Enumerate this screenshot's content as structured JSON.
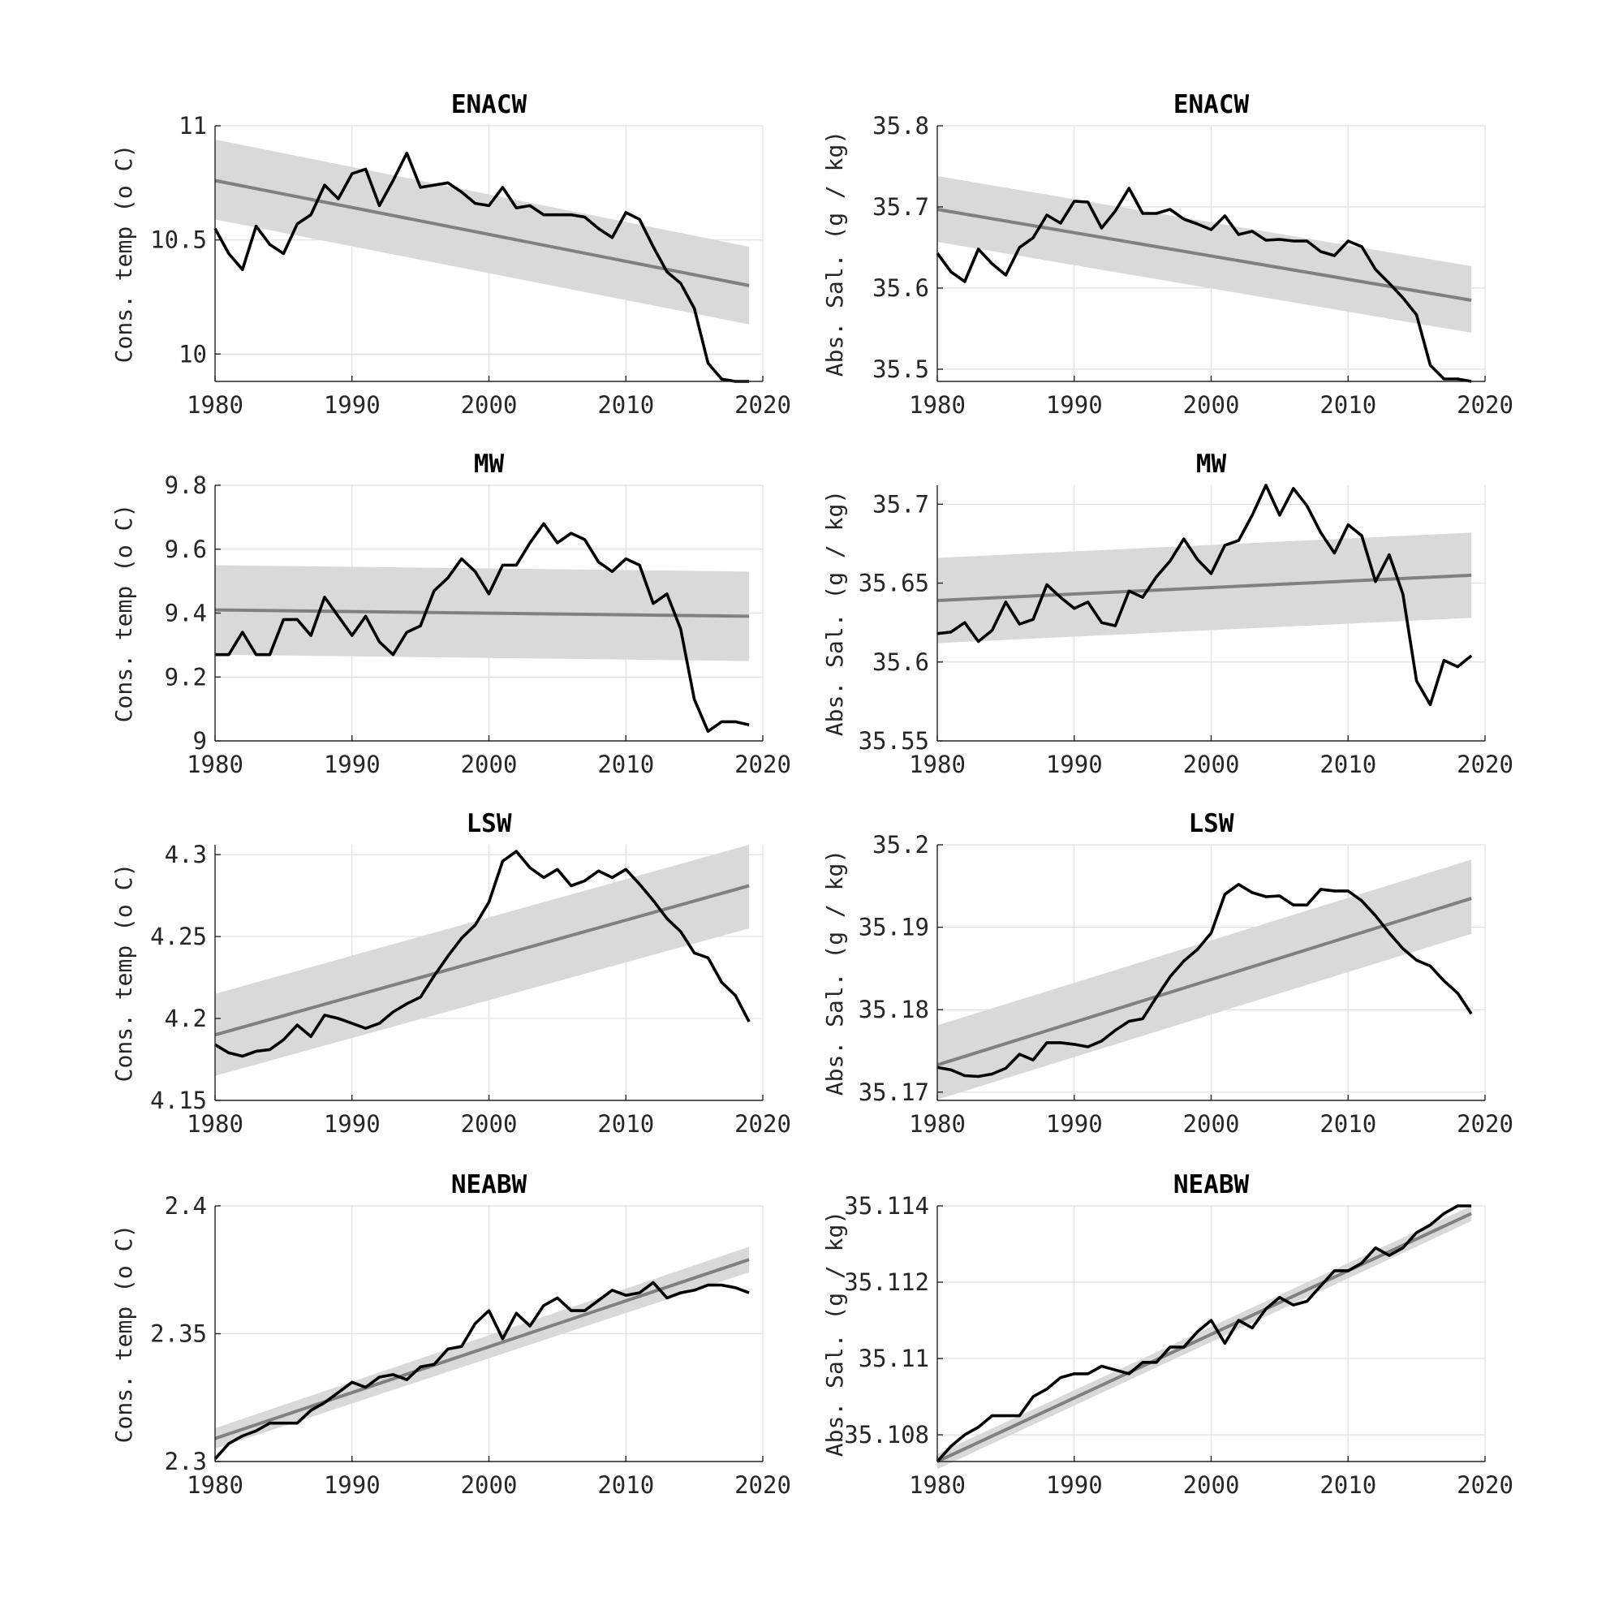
{
  "colors": {
    "observed": "#000000",
    "trend": "#808080",
    "confidence_band": "#d9d9d9",
    "grid": "#e1e1e1"
  },
  "chart_data": [
    {
      "type": "line",
      "title": "ENACW",
      "xlabel": "",
      "ylabel": "Cons. temp (o C)",
      "xlim": [
        1980,
        2020
      ],
      "ylim": [
        9.88,
        11
      ],
      "xticks": [
        "1980",
        "1990",
        "2000",
        "2010",
        "2020"
      ],
      "yticks": [
        "10",
        "10.5",
        "11"
      ],
      "ytick_values": [
        10,
        10.5,
        11
      ],
      "grid": true,
      "x": [
        1980,
        1981,
        1982,
        1983,
        1984,
        1985,
        1986,
        1987,
        1988,
        1989,
        1990,
        1991,
        1992,
        1993,
        1994,
        1995,
        1996,
        1997,
        1998,
        1999,
        2000,
        2001,
        2002,
        2003,
        2004,
        2005,
        2006,
        2007,
        2008,
        2009,
        2010,
        2011,
        2012,
        2013,
        2014,
        2015,
        2016,
        2017,
        2018,
        2019
      ],
      "series": [
        {
          "values": [
            10.55,
            10.44,
            10.37,
            10.56,
            10.48,
            10.44,
            10.57,
            10.61,
            10.74,
            10.68,
            10.79,
            10.81,
            10.65,
            10.76,
            10.88,
            10.73,
            10.74,
            10.75,
            10.71,
            10.66,
            10.65,
            10.73,
            10.64,
            10.65,
            10.61,
            10.61,
            10.61,
            10.6,
            10.55,
            10.51,
            10.62,
            10.59,
            10.47,
            10.36,
            10.31,
            10.2,
            9.96,
            9.89,
            9.88,
            9.88
          ]
        }
      ],
      "trend": {
        "start": 10.76,
        "end": 10.3
      },
      "confidence_band": {
        "upper_start": 10.94,
        "upper_end": 10.47,
        "lower_start": 10.59,
        "lower_end": 10.13
      }
    },
    {
      "type": "line",
      "title": "ENACW",
      "xlabel": "",
      "ylabel": "Abs. Sal. (g / kg)",
      "xlim": [
        1980,
        2020
      ],
      "ylim": [
        35.485,
        35.8
      ],
      "xticks": [
        "1980",
        "1990",
        "2000",
        "2010",
        "2020"
      ],
      "yticks": [
        "35.5",
        "35.6",
        "35.7",
        "35.8"
      ],
      "ytick_values": [
        35.5,
        35.6,
        35.7,
        35.8
      ],
      "grid": true,
      "x": [
        1980,
        1981,
        1982,
        1983,
        1984,
        1985,
        1986,
        1987,
        1988,
        1989,
        1990,
        1991,
        1992,
        1993,
        1994,
        1995,
        1996,
        1997,
        1998,
        1999,
        2000,
        2001,
        2002,
        2003,
        2004,
        2005,
        2006,
        2007,
        2008,
        2009,
        2010,
        2011,
        2012,
        2013,
        2014,
        2015,
        2016,
        2017,
        2018,
        2019
      ],
      "series": [
        {
          "values": [
            35.643,
            35.62,
            35.608,
            35.648,
            35.63,
            35.616,
            35.65,
            35.662,
            35.69,
            35.68,
            35.707,
            35.706,
            35.674,
            35.695,
            35.723,
            35.692,
            35.692,
            35.697,
            35.685,
            35.679,
            35.672,
            35.689,
            35.666,
            35.67,
            35.659,
            35.66,
            35.658,
            35.658,
            35.645,
            35.64,
            35.658,
            35.651,
            35.623,
            35.606,
            35.588,
            35.567,
            35.505,
            35.488,
            35.488,
            35.485
          ]
        }
      ],
      "trend": {
        "start": 35.697,
        "end": 35.585
      },
      "confidence_band": {
        "upper_start": 35.738,
        "upper_end": 35.627,
        "lower_start": 35.657,
        "lower_end": 35.545
      }
    },
    {
      "type": "line",
      "title": "MW",
      "xlabel": "",
      "ylabel": "Cons. temp (o C)",
      "xlim": [
        1980,
        2020
      ],
      "ylim": [
        9,
        9.8
      ],
      "xticks": [
        "1980",
        "1990",
        "2000",
        "2010",
        "2020"
      ],
      "yticks": [
        "9",
        "9.2",
        "9.4",
        "9.6",
        "9.8"
      ],
      "ytick_values": [
        9,
        9.2,
        9.4,
        9.6,
        9.8
      ],
      "grid": true,
      "x": [
        1980,
        1981,
        1982,
        1983,
        1984,
        1985,
        1986,
        1987,
        1988,
        1989,
        1990,
        1991,
        1992,
        1993,
        1994,
        1995,
        1996,
        1997,
        1998,
        1999,
        2000,
        2001,
        2002,
        2003,
        2004,
        2005,
        2006,
        2007,
        2008,
        2009,
        2010,
        2011,
        2012,
        2013,
        2014,
        2015,
        2016,
        2017,
        2018,
        2019
      ],
      "series": [
        {
          "values": [
            9.27,
            9.27,
            9.34,
            9.27,
            9.27,
            9.38,
            9.38,
            9.33,
            9.45,
            9.39,
            9.33,
            9.39,
            9.31,
            9.27,
            9.34,
            9.36,
            9.47,
            9.51,
            9.57,
            9.53,
            9.46,
            9.55,
            9.55,
            9.62,
            9.68,
            9.62,
            9.65,
            9.63,
            9.56,
            9.53,
            9.57,
            9.55,
            9.43,
            9.46,
            9.35,
            9.13,
            9.03,
            9.06,
            9.06,
            9.05
          ]
        }
      ],
      "trend": {
        "start": 9.41,
        "end": 9.39
      },
      "confidence_band": {
        "upper_start": 9.55,
        "upper_end": 9.53,
        "lower_start": 9.27,
        "lower_end": 9.25
      }
    },
    {
      "type": "line",
      "title": "MW",
      "xlabel": "",
      "ylabel": "Abs. Sal. (g / kg)",
      "xlim": [
        1980,
        2020
      ],
      "ylim": [
        35.55,
        35.712
      ],
      "xticks": [
        "1980",
        "1990",
        "2000",
        "2010",
        "2020"
      ],
      "yticks": [
        "35.55",
        "35.6",
        "35.65",
        "35.7"
      ],
      "ytick_values": [
        35.55,
        35.6,
        35.65,
        35.7
      ],
      "grid": true,
      "x": [
        1980,
        1981,
        1982,
        1983,
        1984,
        1985,
        1986,
        1987,
        1988,
        1989,
        1990,
        1991,
        1992,
        1993,
        1994,
        1995,
        1996,
        1997,
        1998,
        1999,
        2000,
        2001,
        2002,
        2003,
        2004,
        2005,
        2006,
        2007,
        2008,
        2009,
        2010,
        2011,
        2012,
        2013,
        2014,
        2015,
        2016,
        2017,
        2018,
        2019
      ],
      "series": [
        {
          "values": [
            35.618,
            35.619,
            35.625,
            35.613,
            35.62,
            35.638,
            35.624,
            35.627,
            35.649,
            35.641,
            35.634,
            35.638,
            35.625,
            35.623,
            35.645,
            35.641,
            35.654,
            35.664,
            35.678,
            35.665,
            35.656,
            35.674,
            35.677,
            35.693,
            35.712,
            35.693,
            35.71,
            35.699,
            35.682,
            35.669,
            35.687,
            35.68,
            35.651,
            35.668,
            35.643,
            35.588,
            35.573,
            35.601,
            35.597,
            35.604
          ]
        }
      ],
      "trend": {
        "start": 35.639,
        "end": 35.655
      },
      "confidence_band": {
        "upper_start": 35.666,
        "upper_end": 35.682,
        "lower_start": 35.612,
        "lower_end": 35.628
      }
    },
    {
      "type": "line",
      "title": "LSW",
      "xlabel": "",
      "ylabel": "Cons. temp (o C)",
      "xlim": [
        1980,
        2020
      ],
      "ylim": [
        4.15,
        4.306
      ],
      "xticks": [
        "1980",
        "1990",
        "2000",
        "2010",
        "2020"
      ],
      "yticks": [
        "4.15",
        "4.2",
        "4.25",
        "4.3"
      ],
      "ytick_values": [
        4.15,
        4.2,
        4.25,
        4.3
      ],
      "grid": true,
      "x": [
        1980,
        1981,
        1982,
        1983,
        1984,
        1985,
        1986,
        1987,
        1988,
        1989,
        1990,
        1991,
        1992,
        1993,
        1994,
        1995,
        1996,
        1997,
        1998,
        1999,
        2000,
        2001,
        2002,
        2003,
        2004,
        2005,
        2006,
        2007,
        2008,
        2009,
        2010,
        2011,
        2012,
        2013,
        2014,
        2015,
        2016,
        2017,
        2018,
        2019
      ],
      "series": [
        {
          "values": [
            4.184,
            4.179,
            4.177,
            4.18,
            4.181,
            4.187,
            4.196,
            4.189,
            4.202,
            4.2,
            4.197,
            4.194,
            4.197,
            4.204,
            4.209,
            4.213,
            4.226,
            4.238,
            4.249,
            4.257,
            4.271,
            4.296,
            4.302,
            4.292,
            4.286,
            4.291,
            4.281,
            4.284,
            4.29,
            4.286,
            4.291,
            4.282,
            4.272,
            4.261,
            4.253,
            4.24,
            4.237,
            4.222,
            4.214,
            4.198
          ]
        }
      ],
      "trend": {
        "start": 4.19,
        "end": 4.281
      },
      "confidence_band": {
        "upper_start": 4.215,
        "upper_end": 4.306,
        "lower_start": 4.165,
        "lower_end": 4.255
      }
    },
    {
      "type": "line",
      "title": "LSW",
      "xlabel": "",
      "ylabel": "Abs. Sal. (g / kg)",
      "xlim": [
        1980,
        2020
      ],
      "ylim": [
        35.169,
        35.2
      ],
      "xticks": [
        "1980",
        "1990",
        "2000",
        "2010",
        "2020"
      ],
      "yticks": [
        "35.17",
        "35.18",
        "35.19",
        "35.2"
      ],
      "ytick_values": [
        35.17,
        35.18,
        35.19,
        35.2
      ],
      "grid": true,
      "x": [
        1980,
        1981,
        1982,
        1983,
        1984,
        1985,
        1986,
        1987,
        1988,
        1989,
        1990,
        1991,
        1992,
        1993,
        1994,
        1995,
        1996,
        1997,
        1998,
        1999,
        2000,
        2001,
        2002,
        2003,
        2004,
        2005,
        2006,
        2007,
        2008,
        2009,
        2010,
        2011,
        2012,
        2013,
        2014,
        2015,
        2016,
        2017,
        2018,
        2019
      ],
      "series": [
        {
          "values": [
            35.173,
            35.1727,
            35.172,
            35.1719,
            35.1722,
            35.1729,
            35.1746,
            35.1739,
            35.176,
            35.176,
            35.1758,
            35.1755,
            35.1762,
            35.1775,
            35.1786,
            35.1789,
            35.1815,
            35.184,
            35.1859,
            35.1873,
            35.1893,
            35.194,
            35.1952,
            35.1942,
            35.1937,
            35.1938,
            35.1927,
            35.1927,
            35.1946,
            35.1944,
            35.1944,
            35.1932,
            35.1914,
            35.1893,
            35.1874,
            35.186,
            35.1853,
            35.1835,
            35.182,
            35.1795
          ]
        }
      ],
      "trend": {
        "start": 35.1733,
        "end": 35.1935
      },
      "confidence_band": {
        "upper_start": 35.1781,
        "upper_end": 35.1982,
        "lower_start": 35.1691,
        "lower_end": 35.1892
      }
    },
    {
      "type": "line",
      "title": "NEABW",
      "xlabel": "",
      "ylabel": "Cons. temp (o C)",
      "xlim": [
        1980,
        2020
      ],
      "ylim": [
        2.3,
        2.4
      ],
      "xticks": [
        "1980",
        "1990",
        "2000",
        "2010",
        "2020"
      ],
      "yticks": [
        "2.3",
        "2.35",
        "2.4"
      ],
      "ytick_values": [
        2.3,
        2.35,
        2.4
      ],
      "grid": true,
      "x": [
        1980,
        1981,
        1982,
        1983,
        1984,
        1985,
        1986,
        1987,
        1988,
        1989,
        1990,
        1991,
        1992,
        1993,
        1994,
        1995,
        1996,
        1997,
        1998,
        1999,
        2000,
        2001,
        2002,
        2003,
        2004,
        2005,
        2006,
        2007,
        2008,
        2009,
        2010,
        2011,
        2012,
        2013,
        2014,
        2015,
        2016,
        2017,
        2018,
        2019
      ],
      "series": [
        {
          "values": [
            2.301,
            2.307,
            2.31,
            2.312,
            2.315,
            2.315,
            2.315,
            2.32,
            2.323,
            2.327,
            2.331,
            2.329,
            2.333,
            2.334,
            2.332,
            2.337,
            2.338,
            2.344,
            2.345,
            2.354,
            2.359,
            2.348,
            2.358,
            2.353,
            2.361,
            2.364,
            2.359,
            2.359,
            2.363,
            2.367,
            2.365,
            2.366,
            2.37,
            2.364,
            2.366,
            2.367,
            2.369,
            2.369,
            2.368,
            2.366
          ]
        }
      ],
      "trend": {
        "start": 2.309,
        "end": 2.379
      },
      "confidence_band": {
        "upper_start": 2.313,
        "upper_end": 2.384,
        "lower_start": 2.305,
        "lower_end": 2.374
      }
    },
    {
      "type": "line",
      "title": "NEABW",
      "xlabel": "",
      "ylabel": "Abs. Sal. (g / kg)",
      "xlim": [
        1980,
        2020
      ],
      "ylim": [
        35.1073,
        35.114
      ],
      "xticks": [
        "1980",
        "1990",
        "2000",
        "2010",
        "2020"
      ],
      "yticks": [
        "35.108",
        "35.11",
        "35.112",
        "35.114"
      ],
      "ytick_values": [
        35.108,
        35.11,
        35.112,
        35.114
      ],
      "grid": true,
      "x": [
        1980,
        1981,
        1982,
        1983,
        1984,
        1985,
        1986,
        1987,
        1988,
        1989,
        1990,
        1991,
        1992,
        1993,
        1994,
        1995,
        1996,
        1997,
        1998,
        1999,
        2000,
        2001,
        2002,
        2003,
        2004,
        2005,
        2006,
        2007,
        2008,
        2009,
        2010,
        2011,
        2012,
        2013,
        2014,
        2015,
        2016,
        2017,
        2018,
        2019
      ],
      "series": [
        {
          "values": [
            35.1073,
            35.1077,
            35.108,
            35.1082,
            35.1085,
            35.1085,
            35.1085,
            35.109,
            35.1092,
            35.1095,
            35.1096,
            35.1096,
            35.1098,
            35.1097,
            35.1096,
            35.1099,
            35.1099,
            35.1103,
            35.1103,
            35.1107,
            35.111,
            35.1104,
            35.111,
            35.1108,
            35.1113,
            35.1116,
            35.1114,
            35.1115,
            35.1119,
            35.1123,
            35.1123,
            35.1125,
            35.1129,
            35.1127,
            35.1129,
            35.1133,
            35.1135,
            35.1138,
            35.114,
            35.114
          ]
        }
      ],
      "trend": {
        "start": 35.1073,
        "end": 35.1138
      },
      "confidence_band": {
        "upper_start": 35.1075,
        "upper_end": 35.114,
        "lower_start": 35.1071,
        "lower_end": 35.1136
      }
    }
  ]
}
